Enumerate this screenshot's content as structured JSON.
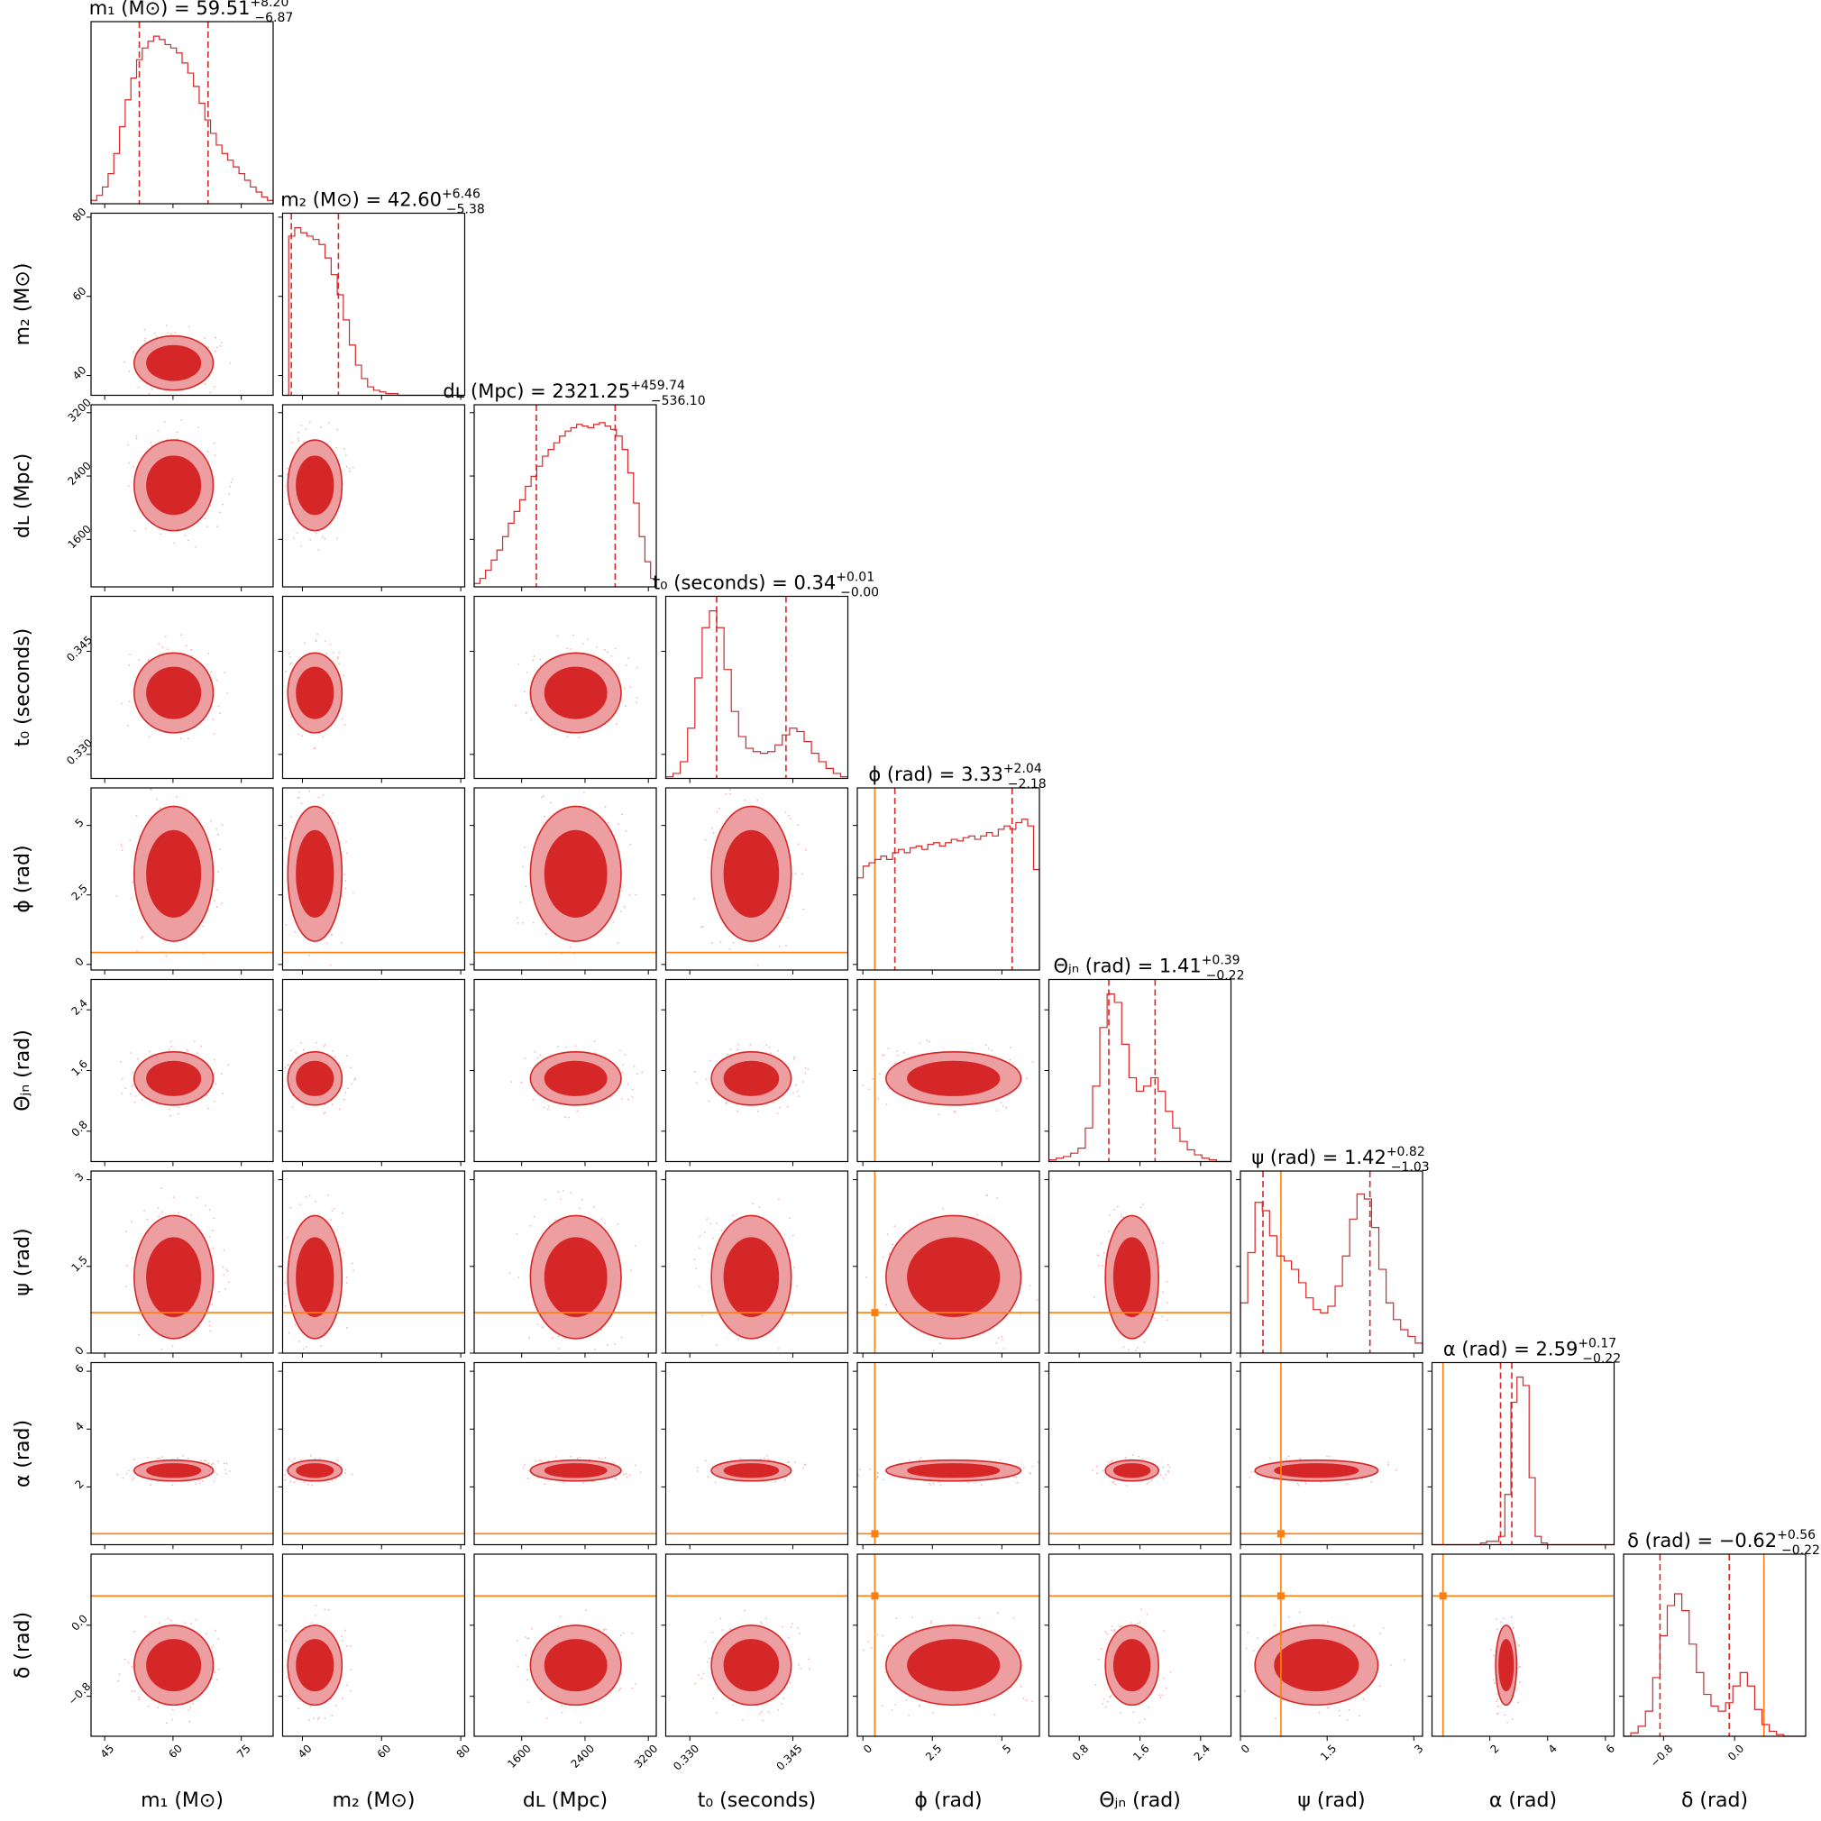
{
  "chart_data": {
    "type": "corner",
    "parameters": [
      {
        "key": "m1",
        "label": "m₁ (M⊙)",
        "title_prefix": "m₁ (M⊙) = ",
        "median": "59.51",
        "plus": "+8.20",
        "minus": "−6.87",
        "range": [
          42,
          82
        ],
        "ticks": [
          45,
          60,
          75
        ],
        "ci": [
          52.6,
          67.7
        ],
        "truth": null
      },
      {
        "key": "m2",
        "label": "m₂ (M⊙)",
        "title_prefix": "m₂ (M⊙) = ",
        "median": "42.60",
        "plus": "+6.46",
        "minus": "−5.38",
        "range": [
          35,
          81
        ],
        "ticks": [
          40,
          60,
          80
        ],
        "ci": [
          37.2,
          49.1
        ],
        "truth": null
      },
      {
        "key": "dL",
        "label": "dʟ (Mpc)",
        "title_prefix": "dʟ (Mpc) = ",
        "median": "2321.25",
        "plus": "+459.74",
        "minus": "−536.10",
        "range": [
          1000,
          3300
        ],
        "ticks": [
          1600,
          2400,
          3200
        ],
        "ci": [
          1785,
          2781
        ],
        "truth": null
      },
      {
        "key": "t0",
        "label": "t₀ (seconds)",
        "title_prefix": "t₀ (seconds) = ",
        "median": "0.34",
        "plus": "+0.01",
        "minus": "−0.00",
        "range": [
          0.3265,
          0.353
        ],
        "ticks": [
          0.33,
          0.345
        ],
        "tick_labels": [
          "0.330",
          "0.345"
        ],
        "ci": [
          0.3339,
          0.344
        ],
        "truth": null
      },
      {
        "key": "phi",
        "label": "ϕ (rad)",
        "title_prefix": "ϕ (rad) = ",
        "median": "3.33",
        "plus": "+2.04",
        "minus": "−2.18",
        "range": [
          -0.2,
          6.35
        ],
        "ticks": [
          0.0,
          2.5,
          5.0
        ],
        "ci": [
          1.15,
          5.37
        ],
        "truth": 0.43
      },
      {
        "key": "theta",
        "label": "Θⱼₙ (rad)",
        "title_prefix": "Θⱼₙ (rad) = ",
        "median": "1.41",
        "plus": "+0.39",
        "minus": "−0.22",
        "range": [
          0.4,
          2.8
        ],
        "ticks": [
          0.8,
          1.6,
          2.4
        ],
        "ci": [
          1.19,
          1.8
        ],
        "truth": null
      },
      {
        "key": "psi",
        "label": "ψ (rad)",
        "title_prefix": "ψ (rad) = ",
        "median": "1.42",
        "plus": "+0.82",
        "minus": "−1.03",
        "range": [
          0.0,
          3.15
        ],
        "ticks": [
          0.0,
          1.5,
          3.0
        ],
        "ci": [
          0.39,
          2.24
        ],
        "truth": 0.7
      },
      {
        "key": "alpha",
        "label": "α (rad)",
        "title_prefix": "α (rad) = ",
        "median": "2.59",
        "plus": "+0.17",
        "minus": "−0.22",
        "range": [
          0.0,
          6.3
        ],
        "ticks": [
          2,
          4,
          6
        ],
        "ci": [
          2.37,
          2.76
        ],
        "truth": 0.38
      },
      {
        "key": "delta",
        "label": "δ (rad)",
        "title_prefix": "δ (rad) = ",
        "median": "−0.62",
        "plus": "+0.56",
        "minus": "−0.22",
        "range": [
          -1.25,
          0.8
        ],
        "ticks": [
          -0.8,
          0.0
        ],
        "tick_labels": [
          "−0.8",
          "0.0"
        ],
        "ci": [
          -0.84,
          -0.06
        ],
        "truth": 0.33
      }
    ],
    "contour_color": "#d62728",
    "fill_outer": "#ec9ea0",
    "truth_color": "#ff7f0e",
    "histograms": {
      "m1": [
        0.02,
        0.05,
        0.1,
        0.18,
        0.3,
        0.46,
        0.62,
        0.75,
        0.86,
        0.93,
        0.97,
        1.0,
        0.98,
        0.95,
        0.93,
        0.9,
        0.84,
        0.78,
        0.7,
        0.6,
        0.5,
        0.42,
        0.35,
        0.3,
        0.26,
        0.22,
        0.18,
        0.14,
        0.1,
        0.07,
        0.04,
        0.02
      ],
      "m2": [
        0.0,
        0.95,
        1.0,
        0.97,
        0.95,
        0.93,
        0.9,
        0.82,
        0.72,
        0.6,
        0.45,
        0.3,
        0.18,
        0.1,
        0.05,
        0.03,
        0.02,
        0.01,
        0.01,
        0.0,
        0.0,
        0.0,
        0.0,
        0.0,
        0.0,
        0.0,
        0.0,
        0.0,
        0.0,
        0.0
      ],
      "dL": [
        0.02,
        0.05,
        0.1,
        0.16,
        0.22,
        0.3,
        0.38,
        0.45,
        0.52,
        0.6,
        0.66,
        0.72,
        0.78,
        0.82,
        0.86,
        0.9,
        0.93,
        0.95,
        0.97,
        0.96,
        0.95,
        0.97,
        0.98,
        0.96,
        0.94,
        0.9,
        0.82,
        0.68,
        0.5,
        0.3,
        0.15,
        0.05
      ],
      "t0": [
        0.01,
        0.03,
        0.1,
        0.3,
        0.6,
        0.9,
        1.0,
        0.9,
        0.65,
        0.4,
        0.25,
        0.18,
        0.16,
        0.15,
        0.16,
        0.2,
        0.26,
        0.3,
        0.28,
        0.22,
        0.15,
        0.1,
        0.06,
        0.03,
        0.01
      ],
      "phi": [
        0.55,
        0.62,
        0.64,
        0.66,
        0.68,
        0.66,
        0.7,
        0.72,
        0.7,
        0.73,
        0.74,
        0.72,
        0.75,
        0.76,
        0.74,
        0.76,
        0.78,
        0.77,
        0.79,
        0.8,
        0.78,
        0.8,
        0.82,
        0.8,
        0.84,
        0.86,
        0.84,
        0.88,
        0.9,
        0.86,
        0.6
      ],
      "theta": [
        0.01,
        0.02,
        0.03,
        0.05,
        0.08,
        0.2,
        0.45,
        0.8,
        1.0,
        0.95,
        0.7,
        0.5,
        0.42,
        0.45,
        0.5,
        0.42,
        0.3,
        0.2,
        0.12,
        0.07,
        0.04,
        0.02,
        0.01,
        0.0,
        0.0
      ],
      "psi": [
        0.3,
        0.6,
        0.9,
        0.85,
        0.7,
        0.58,
        0.55,
        0.5,
        0.42,
        0.33,
        0.26,
        0.24,
        0.28,
        0.4,
        0.58,
        0.8,
        0.95,
        0.92,
        0.75,
        0.5,
        0.3,
        0.2,
        0.14,
        0.1,
        0.06
      ],
      "alpha": [
        0.0,
        0.0,
        0.0,
        0.0,
        0.0,
        0.0,
        0.0,
        0.0,
        0.01,
        0.02,
        0.02,
        0.05,
        0.3,
        0.85,
        1.0,
        0.95,
        0.4,
        0.05,
        0.01,
        0.0,
        0.0,
        0.0,
        0.0,
        0.0,
        0.0,
        0.0,
        0.0,
        0.0,
        0.0,
        0.0
      ],
      "delta": [
        0.0,
        0.02,
        0.06,
        0.15,
        0.35,
        0.6,
        0.78,
        0.85,
        0.75,
        0.55,
        0.38,
        0.25,
        0.18,
        0.15,
        0.2,
        0.3,
        0.38,
        0.3,
        0.16,
        0.07,
        0.03,
        0.01,
        0.0,
        0.0,
        0.0
      ]
    }
  }
}
